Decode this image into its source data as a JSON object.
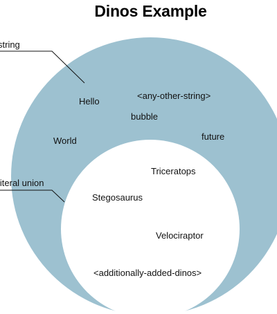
{
  "title": "Dinos Example",
  "colors": {
    "outer_set_fill": "#9dc1d0",
    "inner_set_fill": "#ffffff",
    "leader_line": "#111111"
  },
  "sets": {
    "outer": {
      "label": "string",
      "members": [
        "Hello",
        "<any-other-string>",
        "bubble",
        "World",
        "future"
      ]
    },
    "inner": {
      "label": "literal union",
      "members": [
        "Triceratops",
        "Stegosaurus",
        "Velociraptor",
        "<additionally-added-dinos>"
      ]
    }
  }
}
